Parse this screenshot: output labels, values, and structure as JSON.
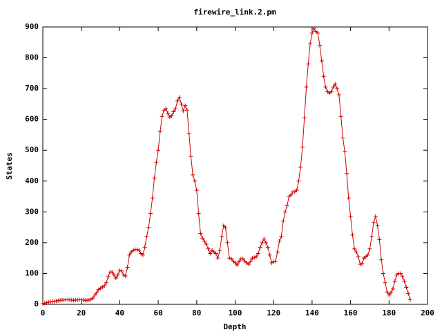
{
  "chart_data": {
    "type": "line",
    "title": "firewire_link.2.pm",
    "x_label": "Depth",
    "y_label": "States",
    "color": "#cc0000",
    "x": [
      0,
      1,
      2,
      3,
      4,
      5,
      6,
      7,
      8,
      9,
      10,
      11,
      12,
      13,
      14,
      15,
      16,
      17,
      18,
      19,
      20,
      21,
      22,
      23,
      24,
      25,
      26,
      27,
      28,
      29,
      30,
      31,
      32,
      33,
      34,
      35,
      36,
      37,
      38,
      39,
      40,
      41,
      42,
      43,
      44,
      45,
      46,
      47,
      48,
      49,
      50,
      51,
      52,
      53,
      54,
      55,
      56,
      57,
      58,
      59,
      60,
      61,
      62,
      63,
      64,
      65,
      66,
      67,
      68,
      69,
      70,
      71,
      72,
      73,
      74,
      75,
      76,
      77,
      78,
      79,
      80,
      81,
      82,
      83,
      84,
      85,
      86,
      87,
      88,
      89,
      90,
      91,
      92,
      93,
      94,
      95,
      96,
      97,
      98,
      99,
      100,
      101,
      102,
      103,
      104,
      105,
      106,
      107,
      108,
      109,
      110,
      111,
      112,
      113,
      114,
      115,
      116,
      117,
      118,
      119,
      120,
      121,
      122,
      123,
      124,
      125,
      126,
      127,
      128,
      129,
      130,
      131,
      132,
      133,
      134,
      135,
      136,
      137,
      138,
      139,
      140,
      141,
      142,
      143,
      144,
      145,
      146,
      147,
      148,
      149,
      150,
      151,
      152,
      153,
      154,
      155,
      156,
      157,
      158,
      159,
      160,
      161,
      162,
      163,
      164,
      165,
      166,
      167,
      168,
      169,
      170,
      171,
      172,
      173,
      174,
      175,
      176,
      177,
      178,
      179,
      180,
      181,
      182,
      183,
      184,
      185,
      186,
      187,
      188,
      189,
      190,
      191
    ],
    "values": [
      2,
      4,
      5,
      7,
      8,
      9,
      10,
      11,
      12,
      13,
      14,
      14,
      15,
      15,
      14,
      14,
      13,
      14,
      14,
      15,
      15,
      14,
      13,
      13,
      14,
      16,
      20,
      30,
      38,
      48,
      52,
      56,
      60,
      70,
      90,
      105,
      105,
      95,
      85,
      95,
      110,
      108,
      95,
      92,
      120,
      160,
      170,
      175,
      178,
      178,
      175,
      165,
      160,
      185,
      220,
      250,
      295,
      345,
      410,
      460,
      500,
      560,
      610,
      630,
      635,
      620,
      608,
      612,
      625,
      635,
      660,
      672,
      650,
      628,
      645,
      630,
      555,
      480,
      420,
      400,
      370,
      295,
      230,
      215,
      205,
      195,
      180,
      165,
      175,
      170,
      165,
      150,
      175,
      220,
      255,
      248,
      200,
      150,
      148,
      140,
      135,
      128,
      138,
      148,
      148,
      140,
      135,
      130,
      140,
      150,
      152,
      155,
      165,
      185,
      200,
      212,
      200,
      185,
      160,
      135,
      138,
      140,
      170,
      205,
      220,
      270,
      300,
      320,
      350,
      355,
      365,
      365,
      370,
      400,
      445,
      510,
      605,
      705,
      780,
      845,
      880,
      895,
      885,
      880,
      840,
      790,
      740,
      705,
      690,
      685,
      690,
      705,
      715,
      700,
      680,
      610,
      540,
      495,
      425,
      345,
      285,
      225,
      180,
      170,
      155,
      130,
      132,
      150,
      155,
      160,
      180,
      220,
      265,
      285,
      255,
      210,
      145,
      100,
      70,
      40,
      30,
      38,
      50,
      75,
      95,
      100,
      100,
      90,
      75,
      55,
      35,
      15
    ],
    "xlim": [
      0,
      200
    ],
    "xticks": [
      0,
      20,
      40,
      60,
      80,
      100,
      120,
      140,
      160,
      180,
      200
    ],
    "ylim": [
      0,
      900
    ],
    "yticks": [
      0,
      100,
      200,
      300,
      400,
      500,
      600,
      700,
      800,
      900
    ]
  }
}
